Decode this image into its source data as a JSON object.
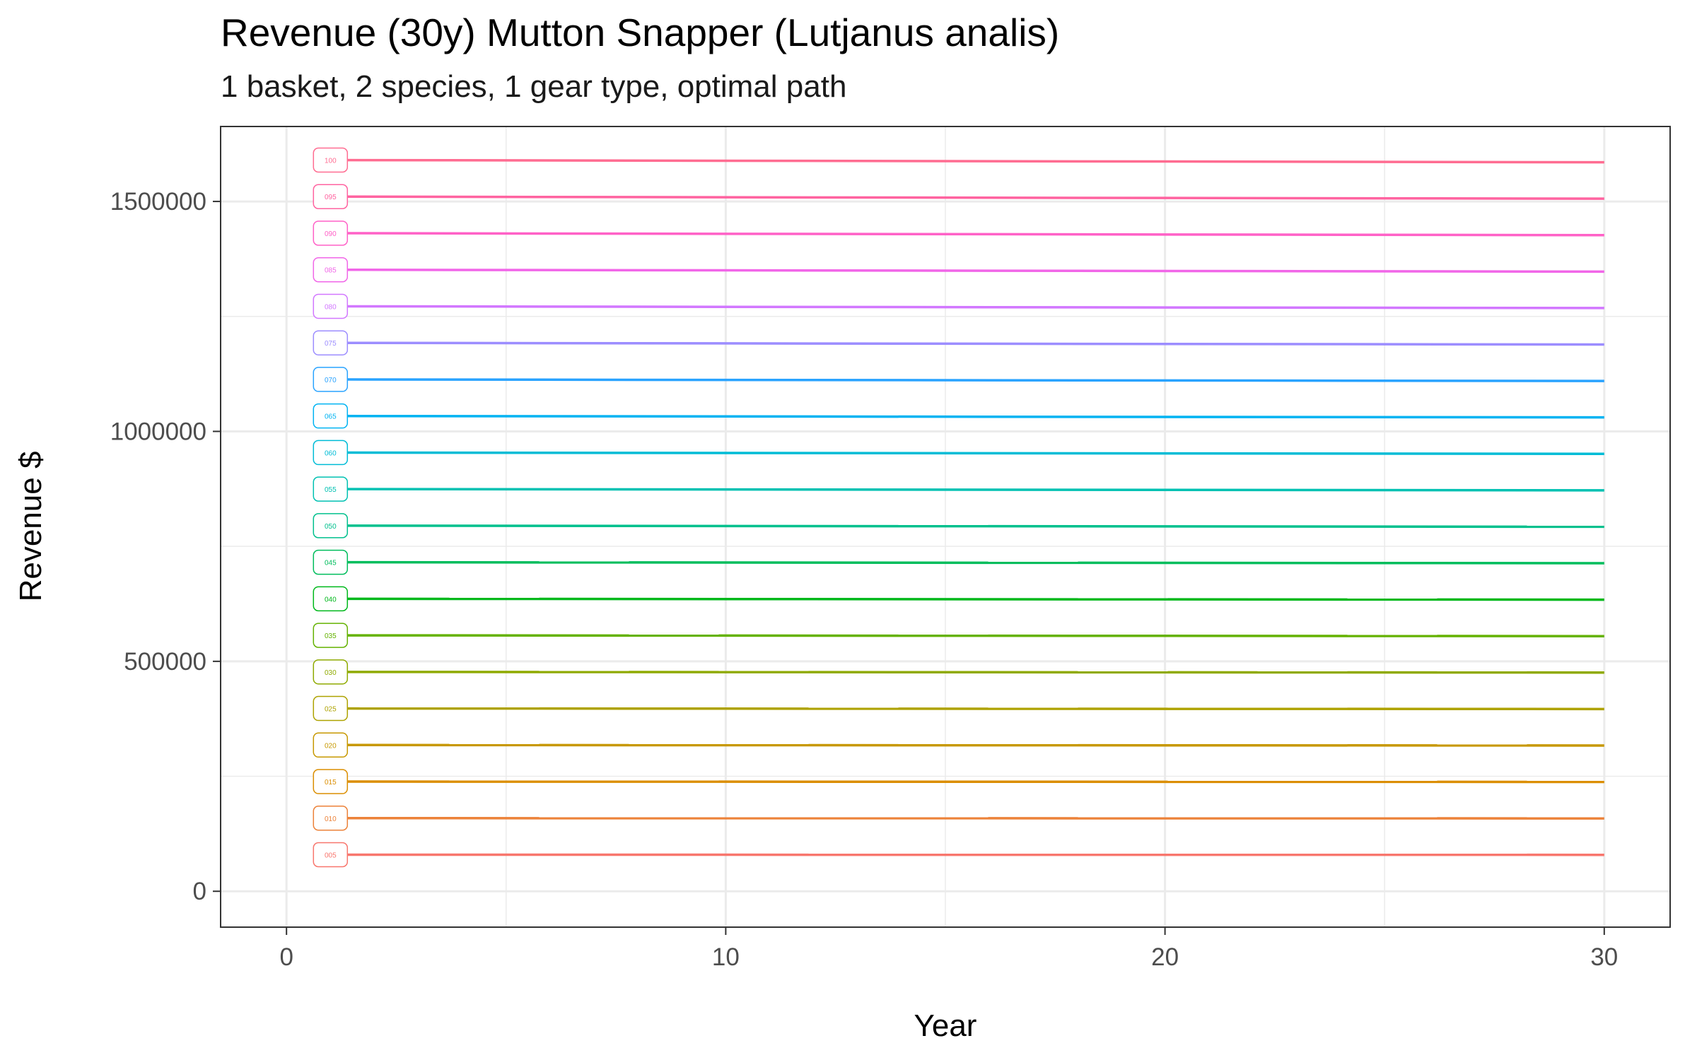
{
  "chart_data": {
    "type": "line",
    "title": "Revenue (30y) Mutton Snapper (Lutjanus analis)",
    "subtitle": "1 basket, 2 species, 1 gear type, optimal path",
    "xlabel": "Year",
    "ylabel": "Revenue $",
    "xlim": [
      -1.5,
      31.5
    ],
    "ylim": [
      -78000,
      1663000
    ],
    "x_ticks": [
      0,
      10,
      20,
      30
    ],
    "x_minor": [
      5,
      15,
      25
    ],
    "y_ticks": [
      0,
      500000,
      1000000,
      1500000
    ],
    "y_tick_labels": [
      "0",
      "500000",
      "1000000",
      "1500000"
    ],
    "y_minor": [
      250000,
      750000,
      1250000
    ],
    "grid": true,
    "legend": "none",
    "x_start": 1,
    "x_end": 30,
    "series": [
      {
        "name": "005",
        "color": "#F8766D",
        "start": 79500,
        "end": 79200
      },
      {
        "name": "010",
        "color": "#EC8239",
        "start": 159000,
        "end": 158500
      },
      {
        "name": "015",
        "color": "#DB8E00",
        "start": 238500,
        "end": 237800
      },
      {
        "name": "020",
        "color": "#C79800",
        "start": 318000,
        "end": 317000
      },
      {
        "name": "025",
        "color": "#AEA200",
        "start": 397500,
        "end": 396300
      },
      {
        "name": "030",
        "color": "#8FAA00",
        "start": 477000,
        "end": 475600
      },
      {
        "name": "035",
        "color": "#64B200",
        "start": 556500,
        "end": 554800
      },
      {
        "name": "040",
        "color": "#00B81B",
        "start": 636000,
        "end": 634100
      },
      {
        "name": "045",
        "color": "#00BD5C",
        "start": 715500,
        "end": 713400
      },
      {
        "name": "050",
        "color": "#00C08D",
        "start": 795000,
        "end": 792600
      },
      {
        "name": "055",
        "color": "#00C1B2",
        "start": 874500,
        "end": 871900
      },
      {
        "name": "060",
        "color": "#00BCD6",
        "start": 954000,
        "end": 951100
      },
      {
        "name": "065",
        "color": "#00B3F2",
        "start": 1033500,
        "end": 1030400
      },
      {
        "name": "070",
        "color": "#29A3FF",
        "start": 1113000,
        "end": 1109600
      },
      {
        "name": "075",
        "color": "#9C8DFF",
        "start": 1192500,
        "end": 1188900
      },
      {
        "name": "080",
        "color": "#D277FF",
        "start": 1272000,
        "end": 1268200
      },
      {
        "name": "085",
        "color": "#F166E8",
        "start": 1351500,
        "end": 1347400
      },
      {
        "name": "090",
        "color": "#FF61C7",
        "start": 1431000,
        "end": 1426700
      },
      {
        "name": "095",
        "color": "#FF63A0",
        "start": 1510500,
        "end": 1506000
      },
      {
        "name": "100",
        "color": "#FF6C91",
        "start": 1590000,
        "end": 1585200
      }
    ]
  }
}
